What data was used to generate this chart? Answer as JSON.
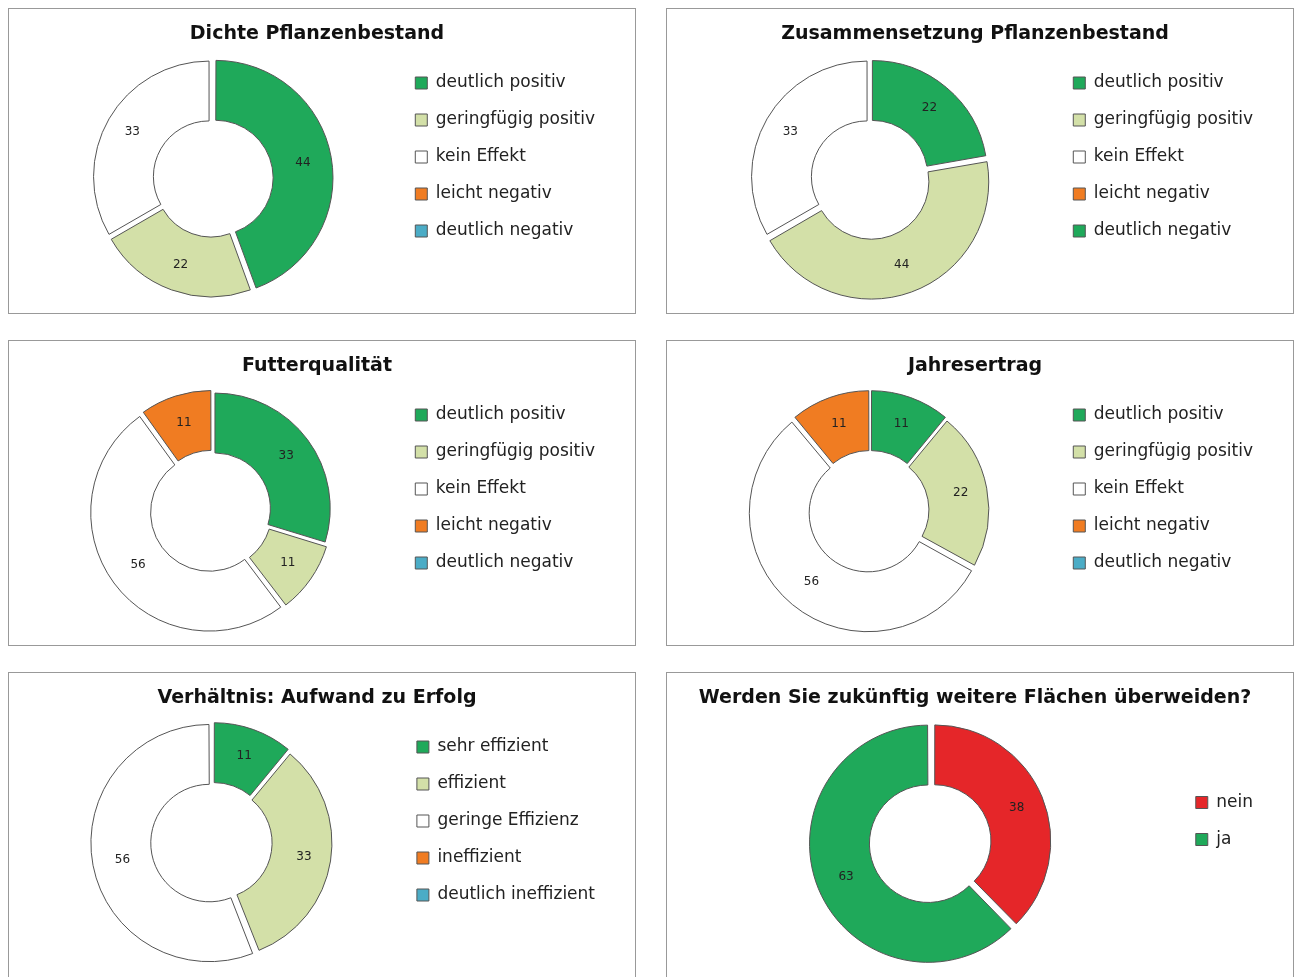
{
  "chart_data": [
    {
      "type": "donut",
      "title": "Dichte Pflanzenbestand",
      "categories": [
        "deutlich positiv",
        "geringfügig positiv",
        "kein Effekt",
        "leicht negativ",
        "deutlich negativ"
      ],
      "values": [
        44,
        22,
        33,
        0,
        0
      ],
      "colors": [
        "#1fa95a",
        "#d3e0a8",
        "#ffffff",
        "#f07c22",
        "#4bacc6"
      ],
      "value_labels": [
        "44",
        "22",
        "33",
        null,
        null
      ],
      "legend": "right"
    },
    {
      "type": "donut",
      "title": "Zusammensetzung Pflanzenbestand",
      "categories": [
        "deutlich positiv",
        "geringfügig positiv",
        "kein Effekt",
        "leicht negativ",
        "deutlich negativ"
      ],
      "values": [
        22,
        44,
        33,
        0,
        0
      ],
      "colors": [
        "#1fa95a",
        "#d3e0a8",
        "#ffffff",
        "#f07c22",
        "#1fa95a"
      ],
      "value_labels": [
        "22",
        "44",
        "33",
        null,
        null
      ],
      "legend": "right"
    },
    {
      "type": "donut",
      "title": "Futterqualität",
      "categories": [
        "deutlich positiv",
        "geringfügig positiv",
        "kein Effekt",
        "leicht negativ",
        "deutlich negativ"
      ],
      "values": [
        33,
        11,
        56,
        11,
        0
      ],
      "colors": [
        "#1fa95a",
        "#d3e0a8",
        "#ffffff",
        "#f07c22",
        "#4bacc6"
      ],
      "value_labels": [
        "33",
        "11",
        "56",
        "11",
        null
      ],
      "legend": "right"
    },
    {
      "type": "donut",
      "title": "Jahresertrag",
      "categories": [
        "deutlich positiv",
        "geringfügig positiv",
        "kein Effekt",
        "leicht negativ",
        "deutlich negativ"
      ],
      "values": [
        11,
        22,
        56,
        11,
        0
      ],
      "colors": [
        "#1fa95a",
        "#d3e0a8",
        "#ffffff",
        "#f07c22",
        "#4bacc6"
      ],
      "value_labels": [
        "11",
        "22",
        "56",
        "11",
        null
      ],
      "legend": "right"
    },
    {
      "type": "donut",
      "title": "Verhältnis: Aufwand zu Erfolg",
      "categories": [
        "sehr effizient",
        "effizient",
        "geringe Effizienz",
        "ineffizient",
        "deutlich ineffizient"
      ],
      "values": [
        11,
        33,
        56,
        0,
        0
      ],
      "colors": [
        "#1fa95a",
        "#d3e0a8",
        "#ffffff",
        "#f07c22",
        "#4bacc6"
      ],
      "value_labels": [
        "11",
        "33",
        "56",
        null,
        null
      ],
      "legend": "right"
    },
    {
      "type": "donut",
      "title": "Werden Sie zukünftig weitere Flächen überweiden?",
      "categories": [
        "nein",
        "ja"
      ],
      "values": [
        38,
        63
      ],
      "colors": [
        "#e52629",
        "#1fa95a"
      ],
      "value_labels": [
        "38",
        "63"
      ],
      "legend": "right"
    }
  ]
}
